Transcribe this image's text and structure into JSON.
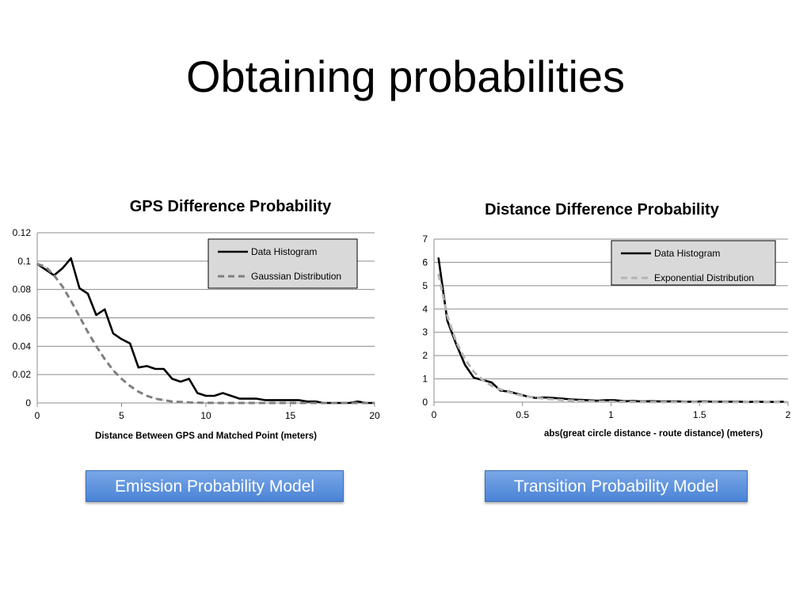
{
  "slide": {
    "title": "Obtaining probabilities"
  },
  "buttons": {
    "emission": "Emission Probability Model",
    "transition": "Transition Probability Model"
  },
  "chart_data": [
    {
      "type": "line",
      "title": "GPS Difference Probability",
      "xlabel": "Distance Between GPS and Matched Point (meters)",
      "ylabel": "",
      "xlim": [
        0,
        20
      ],
      "ylim": [
        0,
        0.12
      ],
      "xticks": [
        "0",
        "5",
        "10",
        "15",
        "20"
      ],
      "xtick_values": [
        0,
        5,
        10,
        15,
        20
      ],
      "yticks": [
        "0",
        "0.02",
        "0.04",
        "0.06",
        "0.08",
        "0.1",
        "0.12"
      ],
      "ytick_values": [
        0,
        0.02,
        0.04,
        0.06,
        0.08,
        0.1,
        0.12
      ],
      "grid": true,
      "legend": "top-right",
      "series": [
        {
          "name": "Data Histogram",
          "color": "#000000",
          "dash": false,
          "x": [
            0,
            0.5,
            1,
            1.5,
            2,
            2.5,
            3,
            3.5,
            4,
            4.5,
            5,
            5.5,
            6,
            6.5,
            7,
            7.5,
            8,
            8.5,
            9,
            9.5,
            10,
            10.5,
            11,
            11.5,
            12,
            12.5,
            13,
            13.5,
            14,
            14.5,
            15,
            15.5,
            16,
            16.5,
            17,
            17.5,
            18,
            18.5,
            19,
            19.5,
            20
          ],
          "y": [
            0.098,
            0.094,
            0.09,
            0.095,
            0.102,
            0.081,
            0.077,
            0.062,
            0.066,
            0.049,
            0.045,
            0.042,
            0.025,
            0.026,
            0.024,
            0.024,
            0.017,
            0.015,
            0.017,
            0.007,
            0.005,
            0.005,
            0.007,
            0.005,
            0.003,
            0.003,
            0.003,
            0.002,
            0.002,
            0.002,
            0.002,
            0.002,
            0.001,
            0.001,
            0.0,
            0.0,
            0.0,
            0.0,
            0.001,
            0.0,
            0.0
          ]
        },
        {
          "name": "Gaussian Distribution",
          "color": "#7f7f7f",
          "dash": true,
          "x": [
            0,
            0.5,
            1,
            1.5,
            2,
            2.5,
            3,
            3.5,
            4,
            4.5,
            5,
            5.5,
            6,
            6.5,
            7,
            7.5,
            8,
            8.5,
            9,
            9.5,
            10,
            11,
            12,
            13,
            14,
            15,
            16,
            17,
            18,
            19,
            20
          ],
          "y": [
            0.098,
            0.096,
            0.09,
            0.082,
            0.072,
            0.061,
            0.05,
            0.04,
            0.031,
            0.023,
            0.017,
            0.012,
            0.008,
            0.005,
            0.003,
            0.002,
            0.001,
            0.0007,
            0.0004,
            0.0002,
            0.0001,
            0.0,
            0.0,
            0.0,
            0.0,
            0.0,
            0.0,
            0.0,
            0.0,
            0.0,
            0.0
          ]
        }
      ]
    },
    {
      "type": "line",
      "title": "Distance Difference Probability",
      "xlabel": "abs(great circle distance - route distance)  (meters)",
      "ylabel": "",
      "xlim": [
        0,
        2
      ],
      "ylim": [
        0,
        7
      ],
      "xticks": [
        "0",
        "0.5",
        "1",
        "1.5",
        "2"
      ],
      "xtick_values": [
        0,
        0.5,
        1,
        1.5,
        2
      ],
      "yticks": [
        "0",
        "1",
        "2",
        "3",
        "4",
        "5",
        "6",
        "7"
      ],
      "ytick_values": [
        0,
        1,
        2,
        3,
        4,
        5,
        6,
        7
      ],
      "grid": true,
      "legend": "top-right",
      "series": [
        {
          "name": "Data Histogram",
          "color": "#000000",
          "dash": false,
          "x": [
            0.025,
            0.075,
            0.125,
            0.175,
            0.225,
            0.275,
            0.325,
            0.375,
            0.425,
            0.475,
            0.525,
            0.575,
            0.625,
            0.675,
            0.725,
            0.775,
            0.825,
            0.875,
            0.925,
            0.975,
            1.025,
            1.075,
            1.125,
            1.175,
            1.225,
            1.275,
            1.325,
            1.375,
            1.425,
            1.475,
            1.525,
            1.575,
            1.625,
            1.675,
            1.725,
            1.775,
            1.825,
            1.875,
            1.925,
            1.975
          ],
          "y": [
            6.2,
            3.5,
            2.5,
            1.6,
            1.05,
            0.95,
            0.85,
            0.5,
            0.45,
            0.35,
            0.25,
            0.18,
            0.2,
            0.18,
            0.15,
            0.12,
            0.1,
            0.08,
            0.06,
            0.09,
            0.08,
            0.04,
            0.05,
            0.03,
            0.04,
            0.03,
            0.03,
            0.03,
            0.02,
            0.02,
            0.03,
            0.02,
            0.02,
            0.02,
            0.02,
            0.01,
            0.02,
            0.01,
            0.01,
            0.02
          ]
        },
        {
          "name": "Exponential Distribution",
          "color": "#b4b4b4",
          "dash": true,
          "x": [
            0.025,
            0.075,
            0.125,
            0.175,
            0.225,
            0.275,
            0.325,
            0.375,
            0.425,
            0.475,
            0.525,
            0.575,
            0.625,
            0.675,
            0.725,
            0.775,
            0.825,
            0.875,
            0.925,
            0.975,
            1.1,
            1.3,
            1.5,
            1.7,
            1.9,
            2.0
          ],
          "y": [
            5.5,
            3.7,
            2.6,
            1.85,
            1.3,
            0.95,
            0.7,
            0.55,
            0.42,
            0.32,
            0.25,
            0.19,
            0.15,
            0.12,
            0.09,
            0.07,
            0.05,
            0.04,
            0.03,
            0.02,
            0.01,
            0.005,
            0.002,
            0.001,
            0.0,
            0.0
          ]
        }
      ]
    }
  ]
}
